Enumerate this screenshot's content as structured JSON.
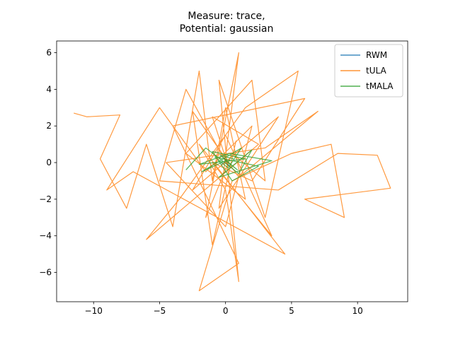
{
  "chart_data": {
    "type": "line",
    "title": [
      "Measure: trace,",
      "Potential: gaussian"
    ],
    "xlim": [
      -12.8,
      13.8
    ],
    "ylim": [
      -7.6,
      6.64
    ],
    "xticks": [
      {
        "value": -10,
        "label": "−10"
      },
      {
        "value": -5,
        "label": "−5"
      },
      0,
      5,
      10
    ],
    "yticks": [
      {
        "value": -6,
        "label": "−6"
      },
      {
        "value": -4,
        "label": "−4"
      },
      {
        "value": -2,
        "label": "−2"
      },
      0,
      2,
      4,
      6
    ],
    "legend": "upper right",
    "series": [
      {
        "name": "RWM",
        "color": "#1f77b4",
        "x": [
          0,
          0.3,
          -0.2,
          0.1,
          -0.3
        ],
        "y": [
          0,
          -0.2,
          0.3,
          0.1,
          -0.1
        ]
      },
      {
        "name": "tULA",
        "color": "#ff7f0e",
        "x": [
          -11.5,
          -10.5,
          -8,
          -9.5,
          -7.5,
          -6,
          -4,
          -2,
          -1,
          0,
          1.5,
          -3,
          2,
          3,
          0.5,
          -1.5,
          1,
          -0.5,
          4,
          -2.5,
          0,
          3.5,
          -1,
          2,
          6,
          -4,
          1,
          -2,
          0.5,
          5,
          8,
          9,
          6,
          12.5,
          11.5,
          8.5,
          4,
          -5,
          -3,
          0.2,
          -1,
          2.5,
          -6,
          -3.5,
          1.5,
          5.5,
          3,
          -0.5,
          1,
          0,
          -2,
          4.5,
          -7,
          -9,
          -5,
          -1.5,
          2,
          0,
          -4.5,
          3,
          7,
          1,
          -2.5,
          -1,
          0.8
        ],
        "y": [
          2.7,
          2.5,
          2.6,
          0.2,
          -2.5,
          1,
          -3.5,
          5,
          -1,
          3,
          -2,
          0.5,
          4.5,
          -1,
          0.5,
          -3,
          6,
          -2.5,
          2.5,
          -1.5,
          1.5,
          -4,
          0,
          -1,
          3.5,
          2,
          -5.5,
          -7,
          -1,
          0.5,
          1,
          -3,
          -2,
          -1.4,
          0.4,
          0.5,
          -1.5,
          -1,
          4,
          -0.2,
          2.5,
          1,
          -4.2,
          -2,
          3,
          5,
          -3,
          4.5,
          -6.5,
          -1.5,
          1,
          -5,
          -0.5,
          -1.5,
          3,
          -0.5,
          2,
          -3.5,
          0,
          0.8,
          2.8,
          -0.8,
          2.8,
          -4.5,
          1.2
        ]
      },
      {
        "name": "tMALA",
        "color": "#2ca02c",
        "x": [
          -3,
          -1.5,
          1,
          2,
          -0.5,
          3.5,
          0.3,
          -2,
          1.5,
          -1,
          0.5,
          2.5,
          -0.8,
          0.2,
          1.2,
          -1.8,
          0,
          0.9,
          -0.4,
          0.6
        ],
        "y": [
          -0.4,
          0.8,
          -0.6,
          0.7,
          -0.8,
          0.1,
          0.5,
          -0.1,
          0.2,
          0.6,
          -1,
          -0.2,
          0.3,
          -0.3,
          0.8,
          -0.5,
          0.1,
          -0.4,
          0.4,
          0.2
        ]
      }
    ]
  }
}
